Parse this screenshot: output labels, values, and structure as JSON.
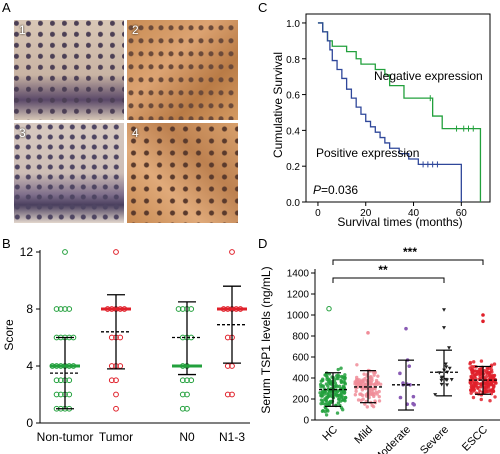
{
  "panels": {
    "A": {
      "letter": "A",
      "tiles": [
        "1",
        "2",
        "3",
        "4"
      ]
    },
    "B": {
      "letter": "B"
    },
    "C": {
      "letter": "C"
    },
    "D": {
      "letter": "D"
    }
  },
  "chart_data": [
    {
      "id": "B",
      "type": "scatter",
      "title": "",
      "ylabel": "Score",
      "xlabel": "",
      "ylim": [
        0,
        12
      ],
      "yticks": [
        0,
        4,
        8,
        12
      ],
      "categories": [
        "Non-tumor",
        "Tumor",
        "N0",
        "N1-3"
      ],
      "colors": {
        "Non-tumor": "#22a03c",
        "Tumor": "#e0202a",
        "N0": "#22a03c",
        "N1-3": "#e0202a"
      },
      "points": {
        "Non-tumor": [
          12,
          8,
          8,
          8,
          8,
          6,
          6,
          6,
          6,
          6,
          4,
          4,
          4,
          4,
          4,
          4,
          3,
          3,
          3,
          3,
          2,
          2,
          2,
          2,
          1,
          1,
          1,
          1
        ],
        "Tumor": [
          12,
          8,
          8,
          8,
          8,
          8,
          6,
          6,
          6,
          4,
          4,
          4,
          3,
          3,
          2,
          1
        ],
        "N0": [
          8,
          8,
          8,
          8,
          6,
          6,
          6,
          4,
          4,
          3,
          3,
          3,
          2,
          2,
          1,
          1
        ],
        "N1-3": [
          12,
          8,
          8,
          8,
          8,
          8,
          6,
          6,
          4,
          4,
          2,
          2
        ]
      },
      "mean": {
        "Non-tumor": 3.5,
        "Tumor": 6.4,
        "N0": 6.0,
        "N1-3": 6.9
      },
      "median": {
        "Non-tumor": 4,
        "Tumor": 8,
        "N0": 4,
        "N1-3": 8
      },
      "sd": {
        "Non-tumor": [
          1.0,
          6.0
        ],
        "Tumor": [
          3.8,
          9.0
        ],
        "N0": [
          3.4,
          8.5
        ],
        "N1-3": [
          4.2,
          9.6
        ]
      }
    },
    {
      "id": "C",
      "type": "line",
      "title": "",
      "ylabel": "Cumulative Survival",
      "xlabel": "Survival times (months)",
      "xlim": [
        -5,
        72
      ],
      "ylim": [
        0,
        1.05
      ],
      "xticks": [
        0,
        20,
        40,
        60
      ],
      "yticks": [
        0.0,
        0.2,
        0.4,
        0.6,
        0.8,
        1.0
      ],
      "ytick_labels": [
        "0.0",
        "0.2",
        "0.4",
        "0.6",
        "0.8",
        "1.0"
      ],
      "annotation": {
        "italic": "P",
        "rest": "=0.036"
      },
      "series": [
        {
          "name": "Negative expression",
          "color": "#22a03c",
          "steps": [
            [
              0,
              1.0
            ],
            [
              2,
              0.95
            ],
            [
              4,
              0.9
            ],
            [
              6,
              0.87
            ],
            [
              12,
              0.84
            ],
            [
              16,
              0.8
            ],
            [
              18,
              0.77
            ],
            [
              24,
              0.74
            ],
            [
              28,
              0.71
            ],
            [
              30,
              0.65
            ],
            [
              36,
              0.58
            ],
            [
              46,
              0.58
            ],
            [
              48,
              0.48
            ],
            [
              52,
              0.41
            ],
            [
              68,
              0.41
            ],
            [
              68,
              0.0
            ]
          ],
          "censor": [
            [
              47,
              0.58
            ],
            [
              58,
              0.41
            ],
            [
              61,
              0.41
            ],
            [
              63,
              0.41
            ],
            [
              65,
              0.41
            ]
          ]
        },
        {
          "name": "Positive expression",
          "color": "#2f479a",
          "steps": [
            [
              0,
              1.0
            ],
            [
              2,
              0.95
            ],
            [
              4,
              0.9
            ],
            [
              5,
              0.85
            ],
            [
              6,
              0.79
            ],
            [
              8,
              0.74
            ],
            [
              10,
              0.69
            ],
            [
              12,
              0.63
            ],
            [
              14,
              0.58
            ],
            [
              16,
              0.53
            ],
            [
              18,
              0.49
            ],
            [
              20,
              0.45
            ],
            [
              22,
              0.42
            ],
            [
              24,
              0.39
            ],
            [
              26,
              0.36
            ],
            [
              28,
              0.33
            ],
            [
              30,
              0.3
            ],
            [
              34,
              0.27
            ],
            [
              38,
              0.24
            ],
            [
              42,
              0.21
            ],
            [
              58,
              0.21
            ],
            [
              60,
              0.0
            ]
          ],
          "censor": [
            [
              44,
              0.21
            ],
            [
              46,
              0.21
            ],
            [
              48,
              0.21
            ],
            [
              50,
              0.21
            ]
          ]
        }
      ]
    },
    {
      "id": "D",
      "type": "scatter",
      "title": "",
      "ylabel": "Serum TSP1 levels (ng/mL)",
      "xlabel": "",
      "ylim": [
        0,
        1400
      ],
      "yticks": [
        0,
        200,
        400,
        600,
        800,
        1000,
        1200,
        1400
      ],
      "categories": [
        "HC",
        "Mild",
        "Moderate",
        "Severe",
        "ESCC"
      ],
      "colors": {
        "HC": "#22a03c",
        "Mild": "#f08c98",
        "Moderate": "#8a5cb5",
        "Severe": "#222222",
        "ESCC": "#e0202a"
      },
      "n": {
        "HC": 160,
        "Mild": 110,
        "Moderate": 12,
        "Severe": 16,
        "ESCC": 170
      },
      "mean": {
        "HC": 290,
        "Mild": 315,
        "Moderate": 335,
        "Severe": 455,
        "ESCC": 380
      },
      "sd": {
        "HC": [
          130,
          450
        ],
        "Mild": [
          165,
          470
        ],
        "Moderate": [
          95,
          570
        ],
        "Severe": [
          230,
          665
        ],
        "ESCC": [
          245,
          510
        ]
      },
      "outliers": {
        "HC": [
          1060
        ],
        "Mild": [
          830
        ],
        "Moderate": [
          870
        ],
        "Severe": [
          1050,
          880
        ],
        "ESCC": [
          1000,
          940
        ]
      },
      "significance": [
        {
          "label": "***",
          "from": "HC",
          "to": "ESCC"
        },
        {
          "label": "**",
          "from": "HC",
          "to": "Severe"
        }
      ]
    }
  ]
}
